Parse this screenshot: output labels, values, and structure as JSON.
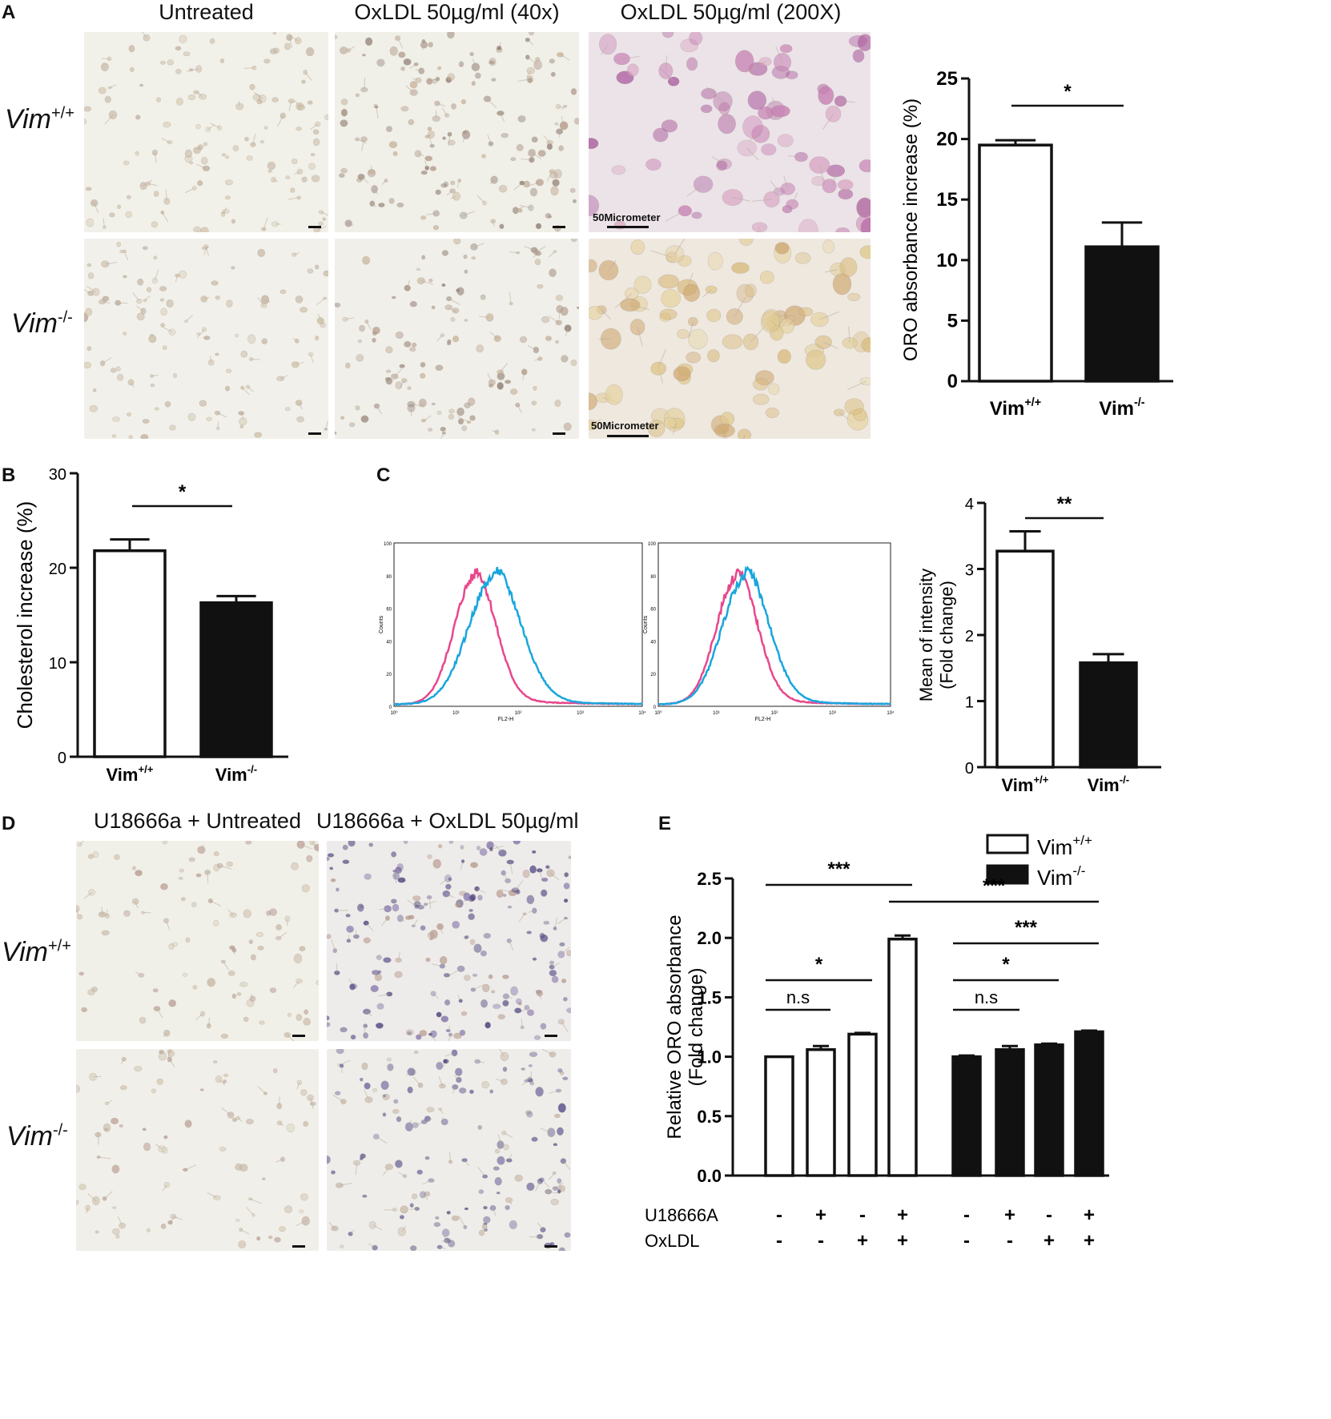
{
  "panels": {
    "A": {
      "letter": "A",
      "col_titles": [
        "Untreated",
        "OxLDL 50µg/ml (40x)",
        "OxLDL 50µg/ml (200X)"
      ],
      "row_labels": [
        {
          "base": "Vim",
          "sup": "+/+"
        },
        {
          "base": "Vim",
          "sup": "-/-"
        }
      ],
      "scale_label": "50Micrometer"
    },
    "B": {
      "letter": "B"
    },
    "C": {
      "letter": "C"
    },
    "D": {
      "letter": "D",
      "col_titles": [
        "U18666a + Untreated",
        "U18666a + OxLDL 50µg/ml"
      ],
      "row_labels": [
        {
          "base": "Vim",
          "sup": "+/+"
        },
        {
          "base": "Vim",
          "sup": "-/-"
        }
      ]
    },
    "E": {
      "letter": "E"
    }
  },
  "chart_data": [
    {
      "id": "A-bar",
      "type": "bar",
      "categories": [
        "Vim+/+",
        "Vim-/-"
      ],
      "category_labels": [
        {
          "base": "Vim",
          "sup": "+/+"
        },
        {
          "base": "Vim",
          "sup": "-/-"
        }
      ],
      "values": [
        19.5,
        11.1
      ],
      "errors": [
        0.4,
        2.0
      ],
      "fills": [
        "#ffffff",
        "#111111"
      ],
      "ylabel": "ORO absorbance increase (%)",
      "ylim": [
        0,
        25
      ],
      "yticks": [
        0,
        5,
        10,
        15,
        20,
        25
      ],
      "significance": [
        {
          "from": 0,
          "to": 1,
          "label": "*"
        }
      ]
    },
    {
      "id": "B-bar",
      "type": "bar",
      "categories": [
        "Vim+/+",
        "Vim-/-"
      ],
      "category_labels": [
        {
          "base": "Vim",
          "sup": "+/+"
        },
        {
          "base": "Vim",
          "sup": "-/-"
        }
      ],
      "values": [
        21.8,
        16.3
      ],
      "errors": [
        1.2,
        0.7
      ],
      "fills": [
        "#ffffff",
        "#111111"
      ],
      "ylabel": "Cholesterol increase (%)",
      "ylim": [
        0,
        30
      ],
      "yticks": [
        0,
        10,
        20,
        30
      ],
      "significance": [
        {
          "from": 0,
          "to": 1,
          "label": "*"
        }
      ]
    },
    {
      "id": "C-histograms",
      "type": "line",
      "panels": [
        {
          "series": [
            {
              "color": "#e8478c",
              "peak_log": 1.3,
              "width": 0.33
            },
            {
              "color": "#1aa6dd",
              "peak_log": 1.62,
              "width": 0.42
            }
          ]
        },
        {
          "series": [
            {
              "color": "#e8478c",
              "peak_log": 1.35,
              "width": 0.35
            },
            {
              "color": "#1aa6dd",
              "peak_log": 1.5,
              "width": 0.4
            }
          ]
        }
      ],
      "xlabel": "FL2-H",
      "ylabel": "Counts",
      "xticks": [
        "10⁰",
        "10¹",
        "10²",
        "10³",
        "10⁴"
      ],
      "yticks": [
        "0",
        "20",
        "40",
        "60",
        "80",
        "100"
      ]
    },
    {
      "id": "C-bar",
      "type": "bar",
      "categories": [
        "Vim+/+",
        "Vim-/-"
      ],
      "category_labels": [
        {
          "base": "Vim",
          "sup": "+/+"
        },
        {
          "base": "Vim",
          "sup": "-/-"
        }
      ],
      "values": [
        3.27,
        1.58
      ],
      "errors": [
        0.3,
        0.13
      ],
      "fills": [
        "#ffffff",
        "#111111"
      ],
      "ylabel_lines": [
        "Mean of  intensity",
        "(Fold change)"
      ],
      "ylim": [
        0,
        4
      ],
      "yticks": [
        0,
        1,
        2,
        3,
        4
      ],
      "significance": [
        {
          "from": 0,
          "to": 1,
          "label": "**"
        }
      ]
    },
    {
      "id": "E-bar",
      "type": "bar",
      "categories": [
        "1",
        "2",
        "3",
        "4",
        "5",
        "6",
        "7",
        "8"
      ],
      "values": [
        1.0,
        1.06,
        1.19,
        1.99,
        1.0,
        1.06,
        1.1,
        1.21
      ],
      "errors": [
        0,
        0.03,
        0.01,
        0.03,
        0.01,
        0.03,
        0.01,
        0.01
      ],
      "fills": [
        "#ffffff",
        "#ffffff",
        "#ffffff",
        "#ffffff",
        "#111111",
        "#111111",
        "#111111",
        "#111111"
      ],
      "ylabel_lines": [
        "Relative ORO absorbance",
        "(Fold change)"
      ],
      "ylim": [
        0,
        2.5
      ],
      "yticks": [
        "0.0",
        "0.5",
        "1.0",
        "1.5",
        "2.0",
        "2.5"
      ],
      "legend": [
        {
          "base": "Vim",
          "sup": "+/+",
          "fill": "#ffffff"
        },
        {
          "base": "Vim",
          "sup": "-/-",
          "fill": "#111111"
        }
      ],
      "treatment_rows": [
        {
          "label": "U18666A",
          "marks": [
            "-",
            "+",
            "-",
            "+",
            "-",
            "+",
            "-",
            "+"
          ]
        },
        {
          "label": "OxLDL",
          "marks": [
            "-",
            "-",
            "+",
            "+",
            "-",
            "-",
            "+",
            "+"
          ]
        }
      ],
      "significance": [
        {
          "from": 0,
          "to": 3,
          "label": "***"
        },
        {
          "from": 3,
          "to": 7,
          "label": "***"
        },
        {
          "from": 4,
          "to": 7,
          "label": "***"
        },
        {
          "from": 0,
          "to": 2,
          "label": "*"
        },
        {
          "from": 4,
          "to": 6,
          "label": "*"
        },
        {
          "from": 0,
          "to": 1,
          "label": "n.s"
        },
        {
          "from": 4,
          "to": 5,
          "label": "n.s"
        }
      ]
    }
  ]
}
